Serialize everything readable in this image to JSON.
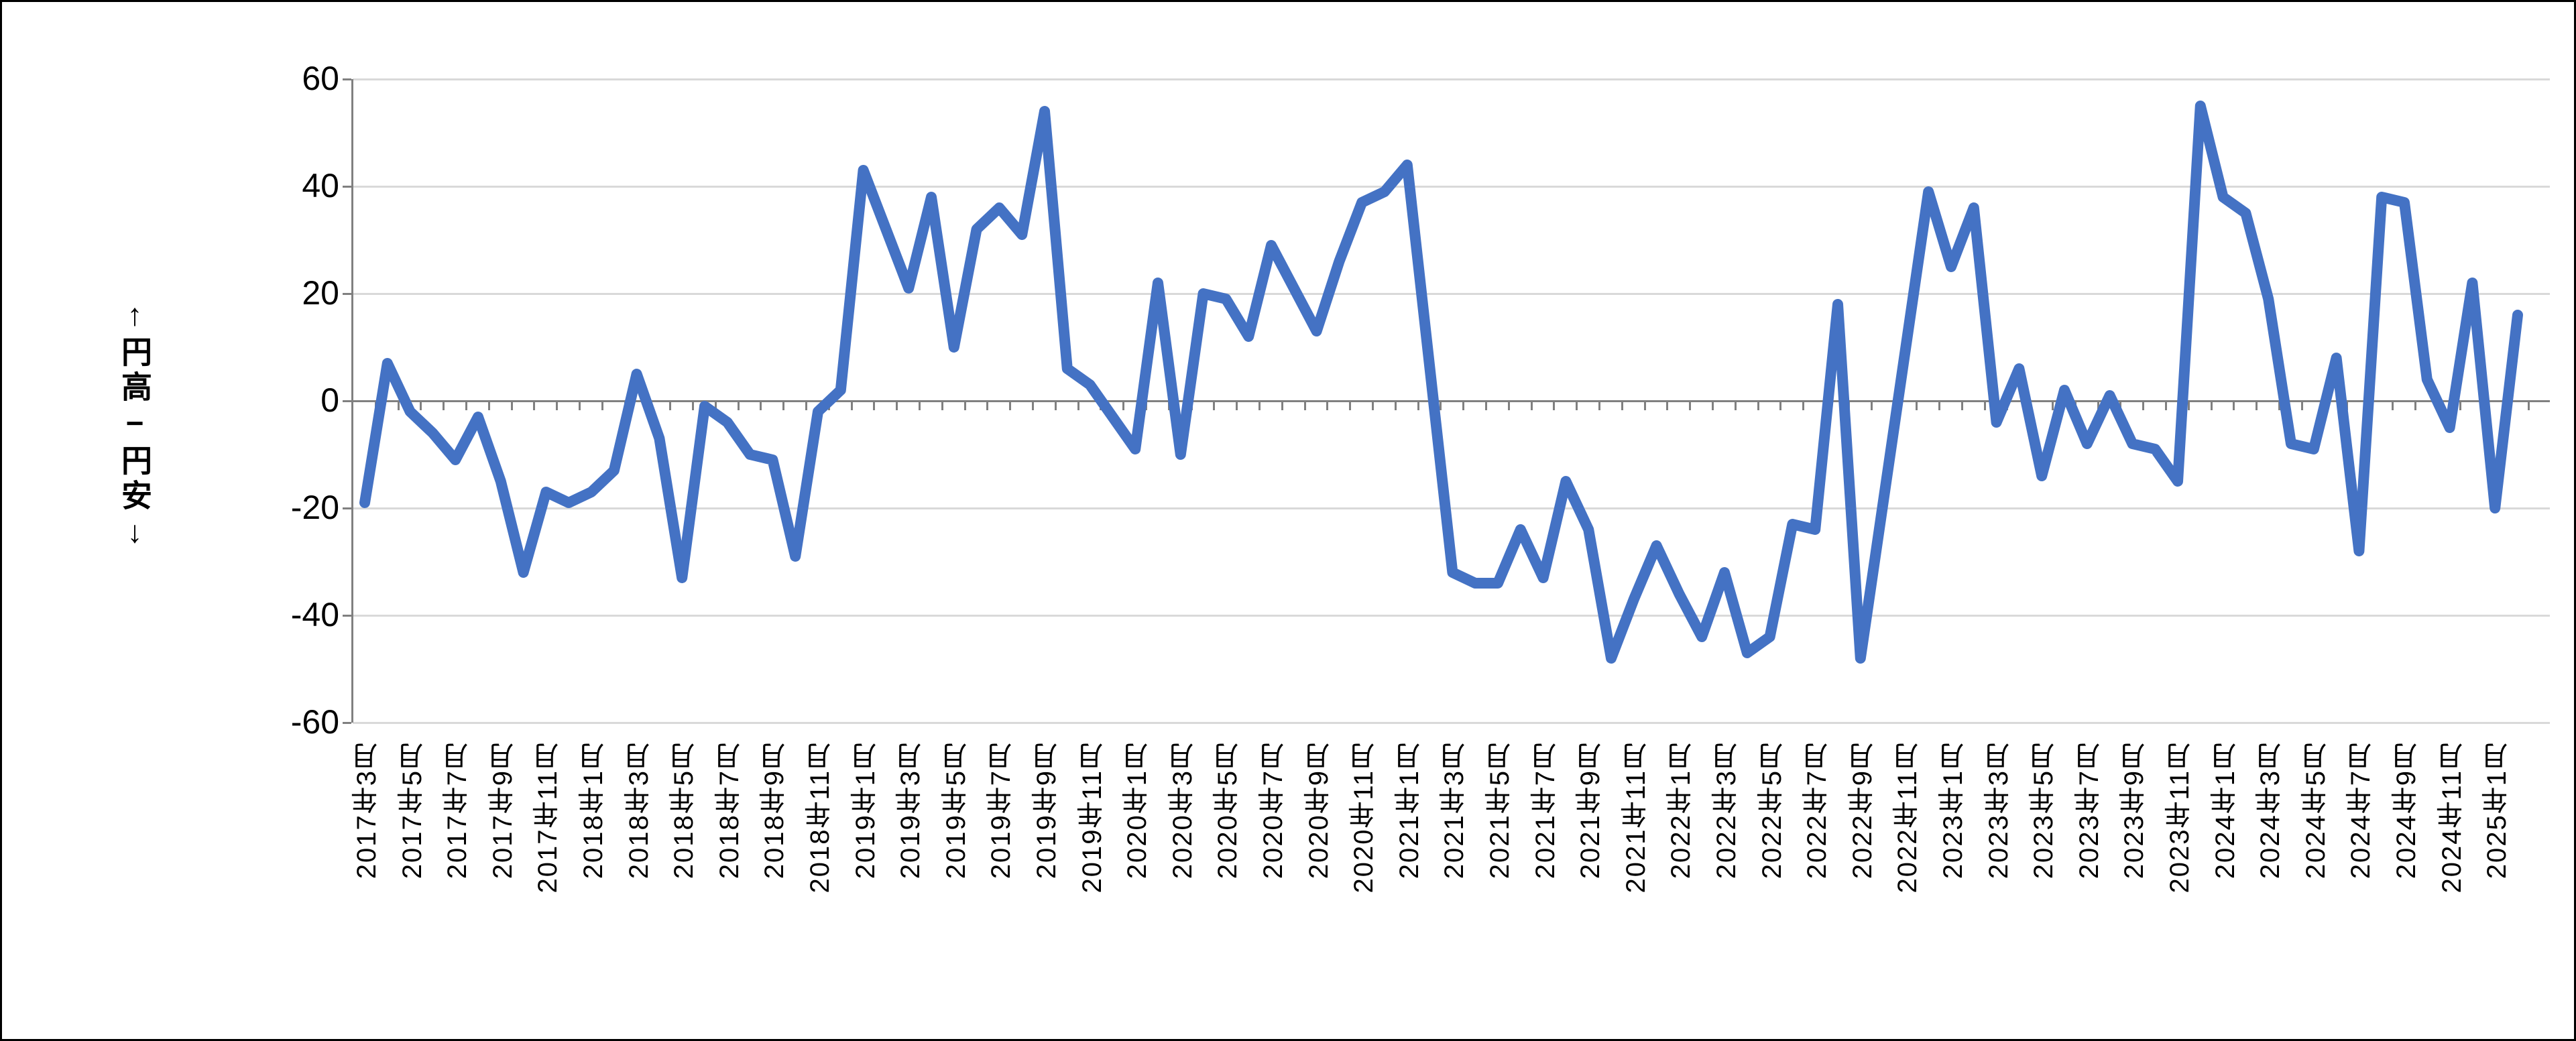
{
  "colors": {
    "line": "#4472C4",
    "gridline": "#D9D9D9",
    "axis": "#808080",
    "text": "#000000",
    "background": "#FFFFFF",
    "border": "#000000"
  },
  "chart_data": {
    "type": "line",
    "title": "",
    "legend": "none",
    "grid": "horizontal",
    "y_axis": {
      "label": "↑円高−円安↓",
      "min": -60,
      "max": 60,
      "step": 20,
      "tick_labels": [
        "60",
        "40",
        "20",
        "0",
        "-20",
        "-40",
        "-60"
      ]
    },
    "x_axis": {
      "tick_labels": [
        "2017年3月",
        "2017年5月",
        "2017年7月",
        "2017年9月",
        "2017年11月",
        "2018年1月",
        "2018年3月",
        "2018年5月",
        "2018年7月",
        "2018年9月",
        "2018年11月",
        "2019年1月",
        "2019年3月",
        "2019年5月",
        "2019年7月",
        "2019年9月",
        "2019年11月",
        "2020年1月",
        "2020年3月",
        "2020年5月",
        "2020年7月",
        "2020年9月",
        "2020年11月",
        "2021年1月",
        "2021年3月",
        "2021年5月",
        "2021年7月",
        "2021年9月",
        "2021年11月",
        "2022年1月",
        "2022年3月",
        "2022年5月",
        "2022年7月",
        "2022年9月",
        "2022年11月",
        "2023年1月",
        "2023年3月",
        "2023年5月",
        "2023年7月",
        "2023年9月",
        "2023年11月",
        "2024年1月",
        "2024年3月",
        "2024年5月",
        "2024年7月",
        "2024年9月",
        "2024年11月",
        "2025年1月"
      ]
    },
    "series": [
      {
        "color": "#4472C4",
        "months": [
          "2017年3月",
          "2017年4月",
          "2017年5月",
          "2017年6月",
          "2017年7月",
          "2017年8月",
          "2017年9月",
          "2017年10月",
          "2017年11月",
          "2017年12月",
          "2018年1月",
          "2018年2月",
          "2018年3月",
          "2018年4月",
          "2018年5月",
          "2018年6月",
          "2018年7月",
          "2018年8月",
          "2018年9月",
          "2018年10月",
          "2018年11月",
          "2018年12月",
          "2019年1月",
          "2019年2月",
          "2019年3月",
          "2019年4月",
          "2019年5月",
          "2019年6月",
          "2019年7月",
          "2019年8月",
          "2019年9月",
          "2019年10月",
          "2019年11月",
          "2019年12月",
          "2020年1月",
          "2020年2月",
          "2020年3月",
          "2020年4月",
          "2020年5月",
          "2020年6月",
          "2020年7月",
          "2020年8月",
          "2020年9月",
          "2020年10月",
          "2020年11月",
          "2020年12月",
          "2021年1月",
          "2021年2月",
          "2021年3月",
          "2021年4月",
          "2021年5月",
          "2021年6月",
          "2021年7月",
          "2021年8月",
          "2021年9月",
          "2021年10月",
          "2021年11月",
          "2021年12月",
          "2022年1月",
          "2022年2月",
          "2022年3月",
          "2022年4月",
          "2022年5月",
          "2022年6月",
          "2022年7月",
          "2022年8月",
          "2022年9月",
          "2022年10月",
          "2022年11月",
          "2022年12月",
          "2023年1月",
          "2023年2月",
          "2023年3月",
          "2023年4月",
          "2023年5月",
          "2023年6月",
          "2023年7月",
          "2023年8月",
          "2023年9月",
          "2023年10月",
          "2023年11月",
          "2023年12月",
          "2024年1月",
          "2024年2月",
          "2024年3月",
          "2024年4月",
          "2024年5月",
          "2024年6月",
          "2024年7月",
          "2024年8月",
          "2024年9月",
          "2024年10月",
          "2024年11月",
          "2024年12月",
          "2025年1月",
          "2025年2月"
        ],
        "values": [
          -19,
          7,
          -2,
          -6,
          -11,
          -3,
          -15,
          -32,
          -17,
          -19,
          -17,
          -13,
          5,
          -7,
          -33,
          -1,
          -4,
          -10,
          -11,
          -29,
          -2,
          2,
          43,
          32,
          21,
          38,
          10,
          32,
          36,
          31,
          54,
          6,
          3,
          -3,
          -9,
          22,
          -10,
          20,
          19,
          12,
          29,
          21,
          13,
          26,
          37,
          39,
          44,
          6,
          -32,
          -34,
          -34,
          -24,
          -33,
          -15,
          -24,
          -48,
          -37,
          -27,
          -36,
          -44,
          -32,
          -47,
          -44,
          -23,
          -24,
          18,
          -48,
          -19,
          10,
          39,
          25,
          36,
          -4,
          6,
          -14,
          2,
          -8,
          1,
          -8,
          -9,
          -15,
          55,
          38,
          35,
          19,
          -8,
          -9,
          8,
          -28,
          38,
          37,
          4,
          -5,
          22,
          -20,
          16
        ]
      }
    ]
  }
}
